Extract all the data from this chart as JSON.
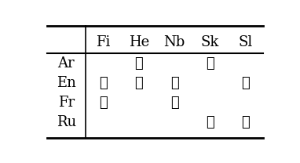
{
  "col_headers": [
    "",
    "Fi",
    "He",
    "Nb",
    "Sk",
    "Sl"
  ],
  "row_headers": [
    "Ar",
    "En",
    "Fr",
    "Ru"
  ],
  "checks": {
    "Ar": [
      "He",
      "Sk"
    ],
    "En": [
      "Fi",
      "He",
      "Nb",
      "Sl"
    ],
    "Fr": [
      "Fi",
      "Nb"
    ],
    "Ru": [
      "Sk",
      "Sl"
    ]
  },
  "font_size": 13,
  "check_symbol": "✓",
  "bg_color": "#ffffff",
  "text_color": "#000000"
}
